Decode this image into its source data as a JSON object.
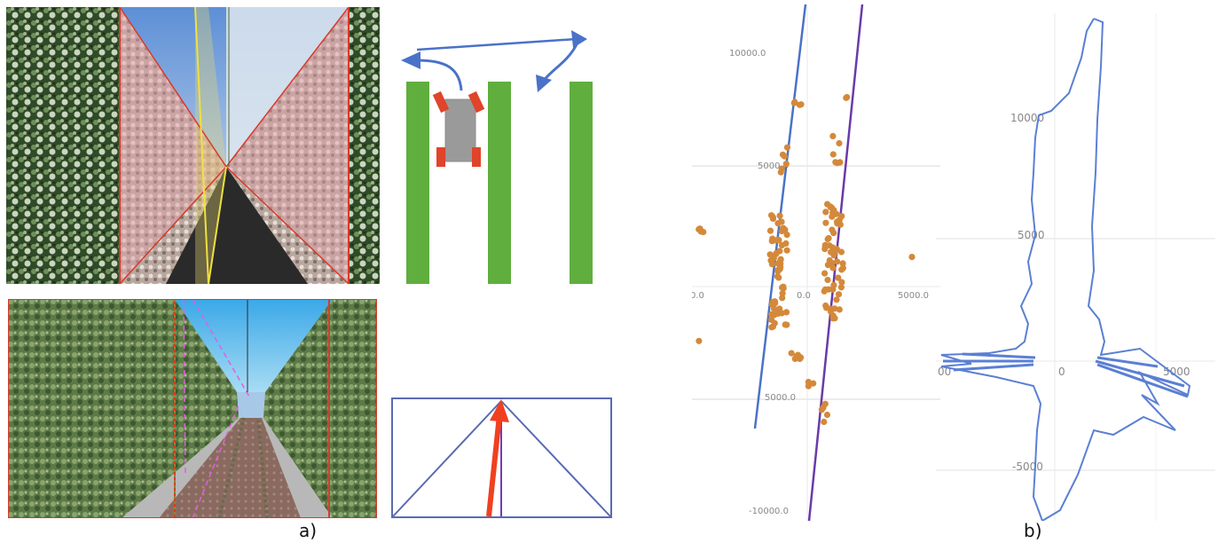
{
  "figure": {
    "caption_a": "a)",
    "caption_b": "b)"
  },
  "panel_a": {
    "orchard_photo": {
      "icon": "orchard-photo-with-overlays"
    },
    "top_view": {
      "icon": "robot-between-rows-diagram"
    },
    "simulation": {
      "icon": "simulated-orchard-corridor"
    },
    "heading": {
      "icon": "heading-arrow-triangle"
    }
  },
  "chart_scatter": {
    "type": "scatter",
    "ticks": {
      "y_top": "10000.0",
      "y_mid_top": "5000.0",
      "x_left": "0.0",
      "x_center": "0.0",
      "x_right": "5000.0",
      "y_mid_bottom": "5000.0",
      "y_bottom": "-10000.0"
    },
    "colors": {
      "points": "#d4893a",
      "line_left": "#4a72c8",
      "line_right": "#6a3aa8"
    }
  },
  "chart_polar": {
    "type": "line",
    "ticks": {
      "y_top": "10000",
      "y_mid": "5000",
      "x_left": "00",
      "x_zero": "0",
      "x_right": "5000",
      "y_bottom": "-5000"
    },
    "colors": {
      "line": "#5b7fd4"
    }
  }
}
